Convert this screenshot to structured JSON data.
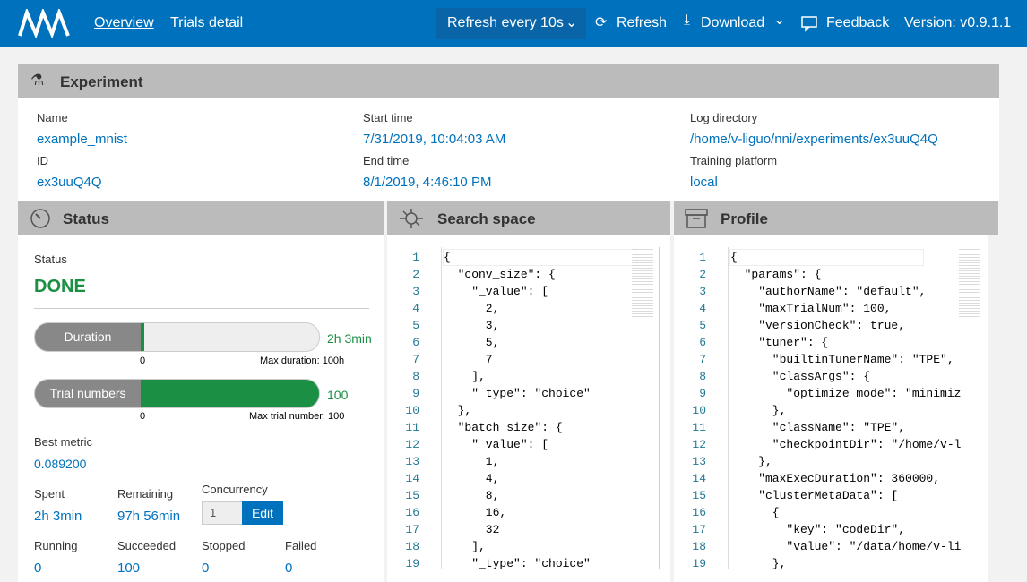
{
  "header": {
    "nav": [
      "Overview",
      "Trials detail"
    ],
    "refresh_interval": "Refresh every 10s",
    "refresh": "Refresh",
    "download": "Download",
    "feedback": "Feedback",
    "version": "Version: v0.9.1.1"
  },
  "experiment": {
    "title": "Experiment",
    "fields": [
      {
        "label": "Name",
        "value": "example_mnist"
      },
      {
        "label": "ID",
        "value": "ex3uuQ4Q"
      },
      {
        "label": "Start time",
        "value": "7/31/2019, 10:04:03 AM"
      },
      {
        "label": "End time",
        "value": "8/1/2019, 4:46:10 PM"
      },
      {
        "label": "Log directory",
        "value": "/home/v-liguo/nni/experiments/ex3uuQ4Q"
      },
      {
        "label": "Training platform",
        "value": "local"
      }
    ]
  },
  "status": {
    "title": "Status",
    "status_label": "Status",
    "status_value": "DONE",
    "duration": {
      "label": "Duration",
      "value": "2h 3min",
      "min": "0",
      "max": "Max duration: 100h"
    },
    "trials": {
      "label": "Trial numbers",
      "value": "100",
      "min": "0",
      "max": "Max trial number: 100"
    },
    "best_metric": {
      "label": "Best metric",
      "value": "0.089200"
    },
    "spent": {
      "label": "Spent",
      "value": "2h 3min"
    },
    "remaining": {
      "label": "Remaining",
      "value": "97h 56min"
    },
    "concurrency": {
      "label": "Concurrency",
      "value": "1",
      "button": "Edit"
    },
    "counts": [
      {
        "label": "Running",
        "value": "0"
      },
      {
        "label": "Succeeded",
        "value": "100"
      },
      {
        "label": "Stopped",
        "value": "0"
      },
      {
        "label": "Failed",
        "value": "0"
      }
    ]
  },
  "search_space": {
    "title": "Search space",
    "line_numbers": [
      1,
      2,
      3,
      4,
      5,
      6,
      7,
      8,
      9,
      10,
      11,
      12,
      13,
      14,
      15,
      16,
      17,
      18,
      19
    ],
    "lines": [
      "{",
      "  \"conv_size\": {",
      "    \"_value\": [",
      "      2,",
      "      3,",
      "      5,",
      "      7",
      "    ],",
      "    \"_type\": \"choice\"",
      "  },",
      "  \"batch_size\": {",
      "    \"_value\": [",
      "      1,",
      "      4,",
      "      8,",
      "      16,",
      "      32",
      "    ],",
      "    \"_type\": \"choice\""
    ]
  },
  "profile": {
    "title": "Profile",
    "line_numbers": [
      1,
      2,
      3,
      4,
      5,
      6,
      7,
      8,
      9,
      10,
      11,
      12,
      13,
      14,
      15,
      16,
      17,
      18,
      19
    ],
    "lines": [
      "{",
      "  \"params\": {",
      "    \"authorName\": \"default\",",
      "    \"maxTrialNum\": 100,",
      "    \"versionCheck\": true,",
      "    \"tuner\": {",
      "      \"builtinTunerName\": \"TPE\",",
      "      \"classArgs\": {",
      "        \"optimize_mode\": \"minimiz",
      "      },",
      "      \"className\": \"TPE\",",
      "      \"checkpointDir\": \"/home/v-l",
      "    },",
      "    \"maxExecDuration\": 360000,",
      "    \"clusterMetaData\": [",
      "      {",
      "        \"key\": \"codeDir\",",
      "        \"value\": \"/data/home/v-li",
      "      },"
    ]
  }
}
